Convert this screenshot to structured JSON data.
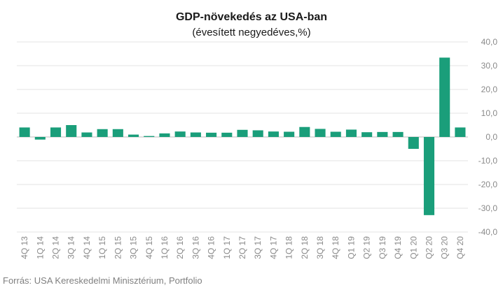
{
  "chart_data": {
    "type": "bar",
    "title": "GDP-növekedés az USA-ban",
    "subtitle": "(évesített negyedéves,%)",
    "xlabel": "",
    "ylabel": "",
    "ylim": [
      -40,
      40
    ],
    "yticks": [
      40,
      30,
      20,
      10,
      0,
      -10,
      -20,
      -30,
      -40
    ],
    "ytick_labels": [
      "40,0",
      "30,0",
      "20,0",
      "10,0",
      "0,0",
      "-10,0",
      "-20,0",
      "-30,0",
      "-40,0"
    ],
    "grid": true,
    "legend": "none",
    "bar_color": "#1a9e7a",
    "categories": [
      "4Q 13",
      "1Q 14",
      "2Q 14",
      "3Q 14",
      "4Q 14",
      "1Q 15",
      "2Q 15",
      "3Q 15",
      "4Q 15",
      "1Q 16",
      "2Q 16",
      "3Q 16",
      "4Q 16",
      "1Q 17",
      "2Q 17",
      "3Q 17",
      "4Q 17",
      "1Q 18",
      "2Q 18",
      "3Q 18",
      "4Q 18",
      "Q1 19",
      "Q2 19",
      "Q3 19",
      "Q4 19",
      "Q1 20",
      "Q2 20",
      "Q3 20",
      "Q4 20"
    ],
    "values": [
      4.0,
      -1.1,
      4.0,
      5.0,
      1.9,
      3.3,
      3.3,
      1.0,
      0.4,
      1.5,
      2.3,
      1.9,
      1.8,
      1.8,
      3.0,
      2.8,
      2.3,
      2.2,
      4.2,
      3.4,
      2.2,
      3.1,
      2.0,
      2.1,
      2.1,
      -5.0,
      -32.9,
      33.4,
      4.0
    ]
  },
  "footer": {
    "source": "Forrás: USA Kereskedelmi Minisztérium, Portfolio"
  }
}
